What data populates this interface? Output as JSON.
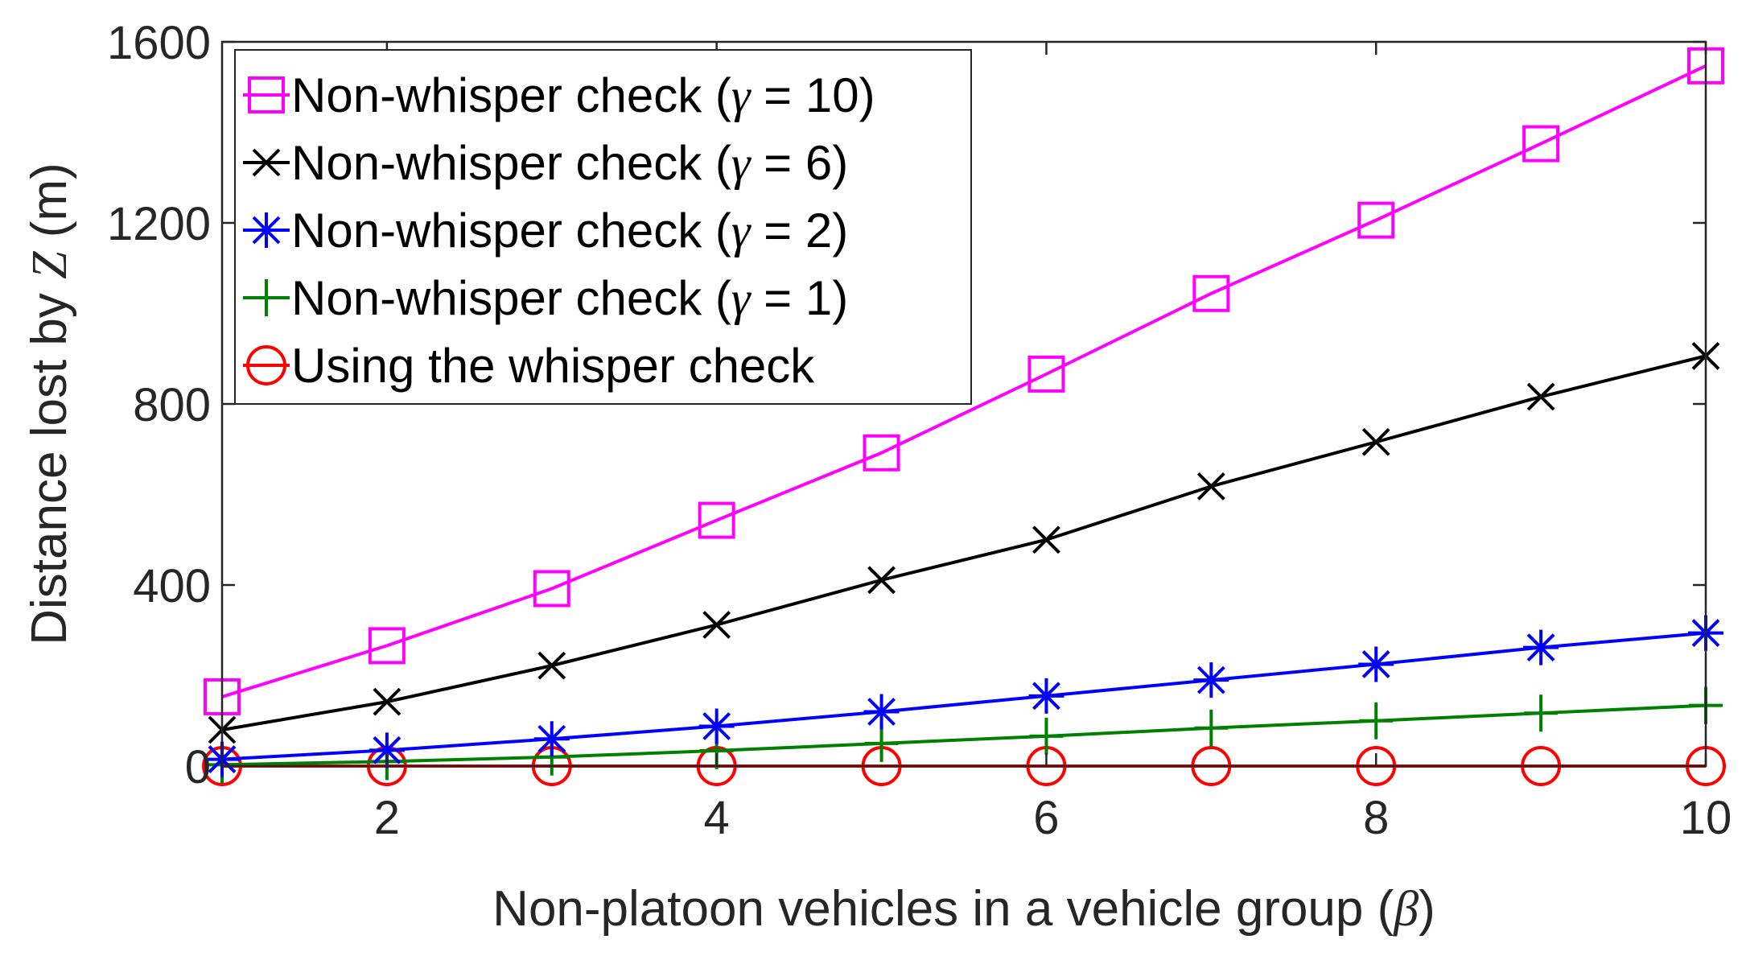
{
  "chart_data": {
    "type": "line",
    "xlabel": "Non-platoon vehicles in a vehicle group (β)",
    "ylabel": "Distance lost by Z (m)",
    "xlim": [
      1,
      10
    ],
    "ylim": [
      0,
      1600
    ],
    "xticks": [
      2,
      4,
      6,
      8,
      10
    ],
    "yticks": [
      0,
      400,
      800,
      1200,
      1600
    ],
    "grid": false,
    "legend_position": "top-left",
    "x": [
      1,
      2,
      3,
      4,
      5,
      6,
      7,
      8,
      9,
      10
    ],
    "series": [
      {
        "name": "Non-whisper check (γ = 10)",
        "color": "#ff00ff",
        "marker": "square",
        "values": [
          153,
          266,
          392,
          543,
          692,
          866,
          1044,
          1206,
          1375,
          1547
        ]
      },
      {
        "name": "Non-whisper check (γ = 6)",
        "color": "#000000",
        "marker": "x",
        "values": [
          80,
          142,
          222,
          312,
          411,
          500,
          618,
          716,
          816,
          906
        ]
      },
      {
        "name": "Non-whisper check (γ = 2)",
        "color": "#0000ff",
        "marker": "star",
        "values": [
          15,
          35,
          60,
          88,
          120,
          155,
          190,
          225,
          262,
          294
        ]
      },
      {
        "name": "Non-whisper check (γ = 1)",
        "color": "#008000",
        "marker": "plus",
        "values": [
          3,
          10,
          20,
          34,
          50,
          66,
          84,
          100,
          117,
          134
        ]
      },
      {
        "name": "Using the whisper check",
        "color": "#ff0000",
        "marker": "circle",
        "values": [
          0,
          0,
          0,
          0,
          0,
          0,
          0,
          0,
          0,
          0
        ]
      }
    ]
  }
}
